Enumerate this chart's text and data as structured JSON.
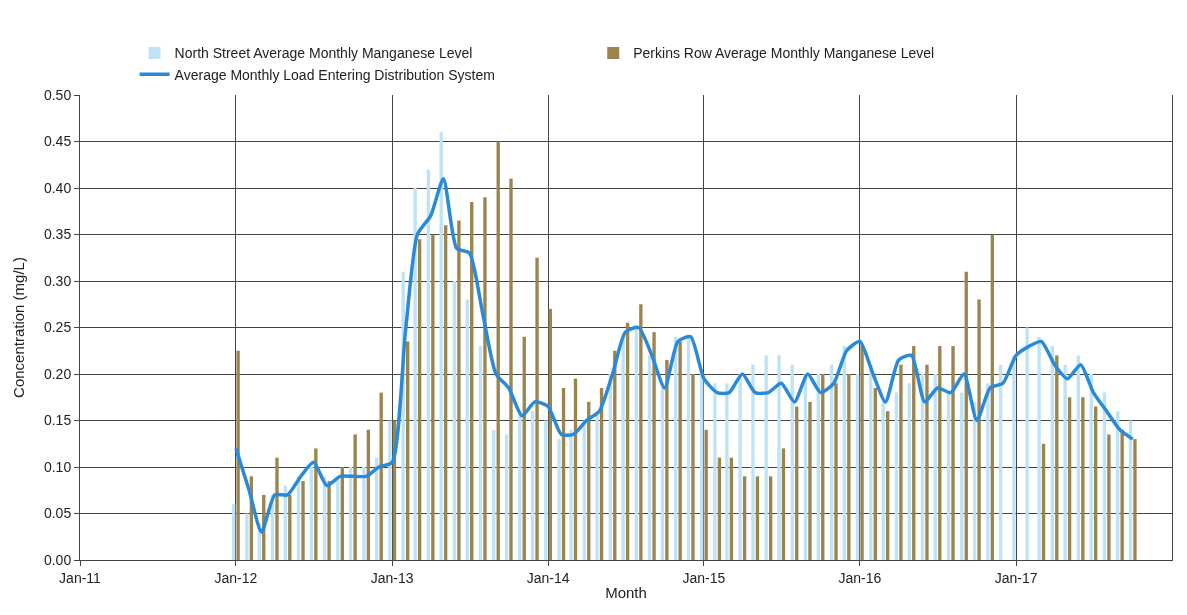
{
  "chart_data": {
    "type": "bar",
    "xlabel": "Month",
    "ylabel": "Concentration (mg/L)",
    "x": [
      "2012-01",
      "2012-02",
      "2012-03",
      "2012-04",
      "2012-05",
      "2012-06",
      "2012-07",
      "2012-08",
      "2012-09",
      "2012-10",
      "2012-11",
      "2012-12",
      "2013-01",
      "2013-02",
      "2013-03",
      "2013-04",
      "2013-05",
      "2013-06",
      "2013-07",
      "2013-08",
      "2013-09",
      "2013-10",
      "2013-11",
      "2013-12",
      "2014-01",
      "2014-02",
      "2014-03",
      "2014-04",
      "2014-05",
      "2014-06",
      "2014-07",
      "2014-08",
      "2014-09",
      "2014-10",
      "2014-11",
      "2014-12",
      "2015-01",
      "2015-02",
      "2015-03",
      "2015-04",
      "2015-05",
      "2015-06",
      "2015-07",
      "2015-08",
      "2015-09",
      "2015-10",
      "2015-11",
      "2015-12",
      "2016-01",
      "2016-02",
      "2016-03",
      "2016-04",
      "2016-05",
      "2016-06",
      "2016-07",
      "2016-08",
      "2016-09",
      "2016-10",
      "2016-11",
      "2016-12",
      "2017-01",
      "2017-02",
      "2017-03",
      "2017-04",
      "2017-05",
      "2017-06",
      "2017-07",
      "2017-08",
      "2017-09",
      "2017-10"
    ],
    "series": [
      {
        "name": "North Street Average Monthly Manganese Level",
        "color": "#bfe2f4",
        "values": [
          0.06,
          0.05,
          0.04,
          0.07,
          0.08,
          0.09,
          0.1,
          0.09,
          0.09,
          0.1,
          0.1,
          0.11,
          0.15,
          0.31,
          0.4,
          0.42,
          0.46,
          0.3,
          0.28,
          0.23,
          0.14,
          0.135,
          0.16,
          0.16,
          0.15,
          0.13,
          0.14,
          0.15,
          0.16,
          0.2,
          0.24,
          0.25,
          0.22,
          0.19,
          0.24,
          0.24,
          0.2,
          0.19,
          0.19,
          0.2,
          0.21,
          0.22,
          0.22,
          0.21,
          0.2,
          0.2,
          0.21,
          0.23,
          0.2,
          0.21,
          0.17,
          0.18,
          0.19,
          0.2,
          0.2,
          0.18,
          0.18,
          0.17,
          0.19,
          0.21,
          0.22,
          0.25,
          0.24,
          0.23,
          0.21,
          0.22,
          0.2,
          0.18,
          0.16,
          0.15
        ]
      },
      {
        "name": "Perkins Row Average Monthly Manganese Level",
        "color": "#9c8450",
        "values": [
          0.225,
          0.09,
          0.07,
          0.11,
          0.07,
          0.085,
          0.12,
          0.085,
          0.1,
          0.135,
          0.14,
          0.18,
          0.15,
          0.235,
          0.345,
          0.35,
          0.36,
          0.365,
          0.385,
          0.39,
          0.45,
          0.41,
          0.24,
          0.325,
          0.27,
          0.185,
          0.195,
          0.17,
          0.185,
          0.225,
          0.255,
          0.275,
          0.245,
          0.215,
          0.235,
          0.2,
          0.14,
          0.11,
          0.11,
          0.09,
          0.09,
          0.09,
          0.12,
          0.165,
          0.17,
          0.2,
          0.19,
          0.2,
          0.23,
          0.185,
          0.16,
          0.21,
          0.23,
          0.21,
          0.23,
          0.23,
          0.31,
          0.28,
          0.35,
          null,
          null,
          null,
          0.125,
          0.22,
          0.175,
          0.175,
          0.165,
          0.135,
          0.14,
          0.13
        ]
      },
      {
        "name": "Average Monthly Load Entering Distribution System",
        "type": "line",
        "color": "#2a8ad8",
        "values": [
          0.12,
          0.075,
          0.03,
          0.07,
          0.07,
          0.09,
          0.105,
          0.08,
          0.09,
          0.09,
          0.09,
          0.1,
          0.105,
          0.245,
          0.35,
          0.37,
          0.41,
          0.335,
          0.33,
          0.265,
          0.2,
          0.185,
          0.155,
          0.17,
          0.165,
          0.135,
          0.135,
          0.15,
          0.16,
          0.2,
          0.245,
          0.25,
          0.22,
          0.185,
          0.235,
          0.24,
          0.195,
          0.18,
          0.18,
          0.2,
          0.18,
          0.18,
          0.19,
          0.17,
          0.2,
          0.18,
          0.19,
          0.225,
          0.235,
          0.2,
          0.17,
          0.215,
          0.22,
          0.17,
          0.185,
          0.18,
          0.2,
          0.15,
          0.185,
          0.19,
          0.22,
          0.23,
          0.235,
          0.21,
          0.195,
          0.21,
          0.18,
          0.16,
          0.14,
          0.13
        ]
      }
    ],
    "xlim": [
      "2011-01-01",
      "2018-01-01"
    ],
    "xticks": [
      {
        "value": "2011-01-01",
        "label": "Jan-11"
      },
      {
        "value": "2012-01-01",
        "label": "Jan-12"
      },
      {
        "value": "2013-01-01",
        "label": "Jan-13"
      },
      {
        "value": "2014-01-01",
        "label": "Jan-14"
      },
      {
        "value": "2015-01-01",
        "label": "Jan-15"
      },
      {
        "value": "2016-01-01",
        "label": "Jan-16"
      },
      {
        "value": "2017-01-01",
        "label": "Jan-17"
      }
    ],
    "ylim": [
      0,
      0.5
    ],
    "yticks": [
      {
        "value": 0,
        "label": "0.00"
      },
      {
        "value": 0.05,
        "label": "0.05"
      },
      {
        "value": 0.1,
        "label": "0.10"
      },
      {
        "value": 0.15,
        "label": "0.15"
      },
      {
        "value": 0.2,
        "label": "0.20"
      },
      {
        "value": 0.25,
        "label": "0.25"
      },
      {
        "value": 0.3,
        "label": "0.30"
      },
      {
        "value": 0.35,
        "label": "0.35"
      },
      {
        "value": 0.4,
        "label": "0.40"
      },
      {
        "value": 0.45,
        "label": "0.45"
      },
      {
        "value": 0.5,
        "label": "0.50"
      }
    ],
    "grid": true,
    "legend": "top",
    "marker": "none",
    "line_style": "solid"
  }
}
